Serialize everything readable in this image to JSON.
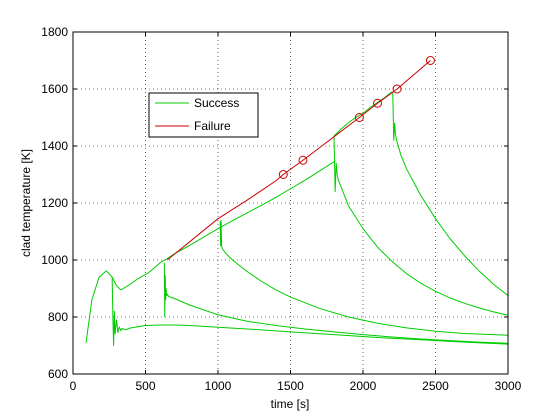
{
  "chart_data": {
    "type": "line",
    "xlabel": "time [s]",
    "ylabel": "clad temperature [K]",
    "xlim": [
      0,
      3000
    ],
    "ylim": [
      600,
      1800
    ],
    "xticks": [
      0,
      500,
      1000,
      1500,
      2000,
      2500,
      3000
    ],
    "yticks": [
      600,
      800,
      1000,
      1200,
      1400,
      1600,
      1800
    ],
    "grid": true,
    "grid_style": "dotted",
    "legend": {
      "position": "upper-left-inside",
      "entries": [
        {
          "label": "Success",
          "color": "#00cc00"
        },
        {
          "label": "Failure",
          "color": "#cc0000"
        }
      ]
    },
    "series": [
      {
        "name": "Success",
        "color": "#00cc00",
        "curves": [
          [
            [
              90,
              710
            ],
            [
              130,
              860
            ],
            [
              180,
              940
            ],
            [
              230,
              962
            ],
            [
              270,
              940
            ],
            [
              300,
              910
            ],
            [
              330,
              895
            ],
            [
              380,
              910
            ],
            [
              450,
              935
            ],
            [
              520,
              955
            ],
            [
              600,
              990
            ],
            [
              650,
              1005
            ],
            [
              700,
              1022
            ],
            [
              800,
              1050
            ],
            [
              900,
              1080
            ],
            [
              1000,
              1110
            ],
            [
              1100,
              1138
            ],
            [
              1200,
              1165
            ],
            [
              1300,
              1192
            ],
            [
              1400,
              1220
            ],
            [
              1500,
              1250
            ],
            [
              1600,
              1280
            ],
            [
              1700,
              1312
            ],
            [
              1800,
              1345
            ]
          ],
          [
            [
              270,
              940
            ],
            [
              275,
              800
            ],
            [
              280,
              700
            ],
            [
              285,
              820
            ],
            [
              290,
              740
            ],
            [
              300,
              790
            ],
            [
              310,
              745
            ],
            [
              320,
              765
            ],
            [
              330,
              752
            ],
            [
              340,
              760
            ],
            [
              360,
              755
            ],
            [
              400,
              762
            ],
            [
              500,
              770
            ],
            [
              600,
              772
            ],
            [
              700,
              772
            ],
            [
              800,
              770
            ],
            [
              1000,
              764
            ],
            [
              1200,
              758
            ],
            [
              1500,
              748
            ],
            [
              1800,
              738
            ],
            [
              2100,
              728
            ],
            [
              2400,
              720
            ],
            [
              2700,
              712
            ],
            [
              3000,
              705
            ]
          ],
          [
            [
              630,
              990
            ],
            [
              633,
              800
            ],
            [
              636,
              945
            ],
            [
              639,
              860
            ],
            [
              642,
              900
            ],
            [
              646,
              875
            ],
            [
              650,
              880
            ],
            [
              660,
              872
            ],
            [
              700,
              865
            ],
            [
              800,
              843
            ],
            [
              900,
              825
            ],
            [
              1000,
              808
            ],
            [
              1200,
              785
            ],
            [
              1400,
              770
            ],
            [
              1600,
              758
            ],
            [
              1800,
              748
            ],
            [
              2000,
              738
            ],
            [
              2200,
              730
            ],
            [
              2400,
              723
            ],
            [
              2600,
              717
            ],
            [
              2800,
              712
            ],
            [
              3000,
              708
            ]
          ],
          [
            [
              1015,
              1135
            ],
            [
              1018,
              1050
            ],
            [
              1021,
              1140
            ],
            [
              1025,
              1050
            ],
            [
              1030,
              1040
            ],
            [
              1050,
              1025
            ],
            [
              1100,
              1000
            ],
            [
              1200,
              960
            ],
            [
              1300,
              925
            ],
            [
              1400,
              895
            ],
            [
              1500,
              870
            ],
            [
              1700,
              830
            ],
            [
              1900,
              800
            ],
            [
              2100,
              778
            ],
            [
              2300,
              762
            ],
            [
              2500,
              750
            ],
            [
              2700,
              742
            ],
            [
              2900,
              738
            ],
            [
              3000,
              736
            ]
          ],
          [
            [
              1800,
              1435
            ],
            [
              1808,
              1240
            ],
            [
              1815,
              1340
            ],
            [
              1822,
              1300
            ],
            [
              1830,
              1280
            ],
            [
              1850,
              1255
            ],
            [
              1900,
              1190
            ],
            [
              2000,
              1110
            ],
            [
              2100,
              1045
            ],
            [
              2200,
              995
            ],
            [
              2300,
              952
            ],
            [
              2400,
              918
            ],
            [
              2500,
              890
            ],
            [
              2600,
              867
            ],
            [
              2700,
              848
            ],
            [
              2800,
              832
            ],
            [
              2900,
              818
            ],
            [
              3000,
              806
            ]
          ],
          [
            [
              1800,
              1435
            ],
            [
              1850,
              1460
            ],
            [
              1900,
              1482
            ],
            [
              1950,
              1500
            ],
            [
              2000,
              1515
            ],
            [
              2050,
              1535
            ],
            [
              2100,
              1553
            ],
            [
              2150,
              1570
            ],
            [
              2200,
              1590
            ]
          ],
          [
            [
              2205,
              1590
            ],
            [
              2212,
              1420
            ],
            [
              2218,
              1480
            ],
            [
              2224,
              1440
            ],
            [
              2232,
              1420
            ],
            [
              2260,
              1370
            ],
            [
              2300,
              1320
            ],
            [
              2400,
              1225
            ],
            [
              2500,
              1145
            ],
            [
              2600,
              1075
            ],
            [
              2700,
              1015
            ],
            [
              2800,
              962
            ],
            [
              2900,
              915
            ],
            [
              3000,
              875
            ]
          ]
        ]
      },
      {
        "name": "Failure",
        "color": "#cc0000",
        "curves": [
          [
            [
              650,
              1000
            ],
            [
              1000,
              1145
            ],
            [
              1200,
              1210
            ],
            [
              1400,
              1278
            ],
            [
              1450,
              1300
            ],
            [
              1586,
              1350
            ],
            [
              1975,
              1500
            ],
            [
              2100,
              1550
            ],
            [
              2235,
              1600
            ],
            [
              2465,
              1700
            ]
          ]
        ],
        "markers": [
          [
            1450,
            1300
          ],
          [
            1586,
            1350
          ],
          [
            1975,
            1500
          ],
          [
            2100,
            1550
          ],
          [
            2235,
            1600
          ],
          [
            2465,
            1700
          ]
        ]
      }
    ]
  }
}
